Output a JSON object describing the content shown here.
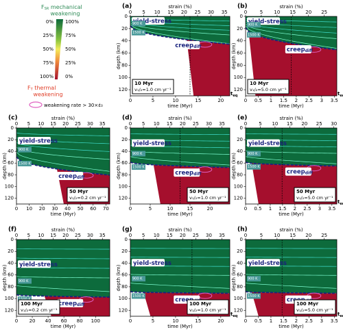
{
  "legend": {
    "top_symbol": "F",
    "top_sub": "SR",
    "top_word": "mechanical",
    "top_word2": "weakening",
    "left_ticks": [
      "0%",
      "25%",
      "50%",
      "75%",
      "100%"
    ],
    "right_ticks": [
      "100%",
      "75%",
      "50%",
      "25%",
      "0%"
    ],
    "bottom_symbol": "F",
    "bottom_sub": "T",
    "bottom_word": "thermal",
    "bottom_word2": "weakening",
    "rate_label": "weakening rate > 30×ε̇₀"
  },
  "chart_data": [
    {
      "type": "field",
      "title": "(a)",
      "xlabel": "time (Myr)",
      "x2label": "strain (%)",
      "ylabel": "depth (km)",
      "xlim": [
        0,
        22
      ],
      "xticks": [
        0,
        5,
        10,
        15,
        20
      ],
      "x2lim": [
        0,
        37
      ],
      "x2ticks": [
        0,
        5,
        10,
        15,
        20,
        25,
        30,
        35
      ],
      "ylim": [
        130,
        0
      ],
      "yticks": [
        0,
        20,
        40,
        60,
        80,
        100,
        120
      ],
      "upper_label": "yield-stress",
      "lower_label": "creep",
      "lower_sub": "diff",
      "isotherm_1": "900 K",
      "isotherm_2": "1500 K",
      "age": "10 Myr",
      "velocity": "v₁/₂=1.0 cm yr⁻¹",
      "teq": "t",
      "teq_sub": "eq"
    },
    {
      "type": "field",
      "title": "(b)",
      "xlabel": "time (Myr)",
      "x2label": "strain (%)",
      "ylabel": "depth (km)",
      "xlim": [
        0,
        3.6
      ],
      "xticks": [
        0,
        0.5,
        1,
        1.5,
        2,
        2.5,
        3,
        3.5
      ],
      "x2lim": [
        0,
        29
      ],
      "x2ticks": [
        0,
        5,
        10,
        15,
        20,
        25
      ],
      "ylim": [
        130,
        0
      ],
      "yticks": [
        0,
        20,
        40,
        60,
        80,
        100,
        120
      ],
      "upper_label": "yield-stress",
      "lower_label": "creep",
      "lower_sub": "diff",
      "isotherm_1": "900 K",
      "isotherm_2": "1500 K",
      "age": "10 Myr",
      "velocity": "v₁/₂=5.0 cm yr⁻¹",
      "teq": "t",
      "teq_sub": "eq"
    },
    {
      "type": "field",
      "title": "(c)",
      "xlabel": "time (Myr)",
      "x2label": "strain (%)",
      "ylabel": "depth (km)",
      "xlim": [
        0,
        73
      ],
      "xticks": [
        0,
        10,
        20,
        30,
        40,
        50,
        60,
        70
      ],
      "x2lim": [
        0,
        38
      ],
      "x2ticks": [
        0,
        5,
        10,
        15,
        20,
        25,
        30,
        35
      ],
      "ylim": [
        130,
        0
      ],
      "yticks": [
        0,
        20,
        40,
        60,
        80,
        100,
        120
      ],
      "upper_label": "yield-stress",
      "lower_label": "creep",
      "lower_sub": "diff",
      "isotherm_1": "900 K",
      "isotherm_2": "1500 K",
      "age": "50 Myr",
      "velocity": "v₁/₂=0.2 cm yr⁻¹"
    },
    {
      "type": "field",
      "title": "(d)",
      "xlabel": "time (Myr)",
      "x2label": "strain (%)",
      "ylabel": "depth (km)",
      "xlim": [
        0,
        25
      ],
      "xticks": [
        0,
        5,
        10,
        15,
        20
      ],
      "x2lim": [
        0,
        38
      ],
      "x2ticks": [
        0,
        5,
        10,
        15,
        20,
        25,
        30,
        35
      ],
      "ylim": [
        130,
        0
      ],
      "yticks": [
        0,
        20,
        40,
        60,
        80,
        100,
        120
      ],
      "upper_label": "yield-stress",
      "lower_label": "creep",
      "lower_sub": "diff",
      "isotherm_1": "900 K",
      "isotherm_2": "1500 K",
      "age": "50 Myr",
      "velocity": "v₁/₂=1.0 cm yr⁻¹"
    },
    {
      "type": "field",
      "title": "(e)",
      "xlabel": "time (Myr)",
      "x2label": "strain (%)",
      "ylabel": "depth (km)",
      "xlim": [
        0,
        3.7
      ],
      "xticks": [
        0,
        0.5,
        1,
        1.5,
        2,
        2.5,
        3,
        3.5
      ],
      "x2lim": [
        0,
        31
      ],
      "x2ticks": [
        0,
        5,
        10,
        15,
        20,
        25,
        30
      ],
      "ylim": [
        130,
        0
      ],
      "yticks": [
        0,
        20,
        40,
        60,
        80,
        100,
        120
      ],
      "upper_label": "yield-stress",
      "lower_label": "creep",
      "lower_sub": "diff",
      "isotherm_1": "900 K",
      "isotherm_2": "1500 K",
      "age": "50 Myr",
      "velocity": "v₁/₂=5.0 cm yr⁻¹",
      "teq": "t",
      "teq_sub": "eq"
    },
    {
      "type": "field",
      "title": "(f)",
      "xlabel": "time (Myr)",
      "x2label": "strain (%)",
      "ylabel": "depth (km)",
      "xlim": [
        0,
        118
      ],
      "xticks": [
        0,
        20,
        40,
        60,
        80,
        100
      ],
      "x2lim": [
        0,
        38
      ],
      "x2ticks": [
        0,
        5,
        10,
        15,
        20,
        25,
        30,
        35
      ],
      "ylim": [
        130,
        0
      ],
      "yticks": [
        0,
        20,
        40,
        60,
        80,
        100,
        120
      ],
      "upper_label": "yield-stress",
      "lower_label": "creep",
      "lower_sub": "diff",
      "isotherm_1": "900 K",
      "isotherm_2": "1500 K",
      "age": "100 Myr",
      "velocity": "v₁/₂=0.2 cm yr⁻¹"
    },
    {
      "type": "field",
      "title": "(g)",
      "xlabel": "time (Myr)",
      "x2label": "strain (%)",
      "ylabel": "depth (km)",
      "xlim": [
        0,
        22
      ],
      "xticks": [
        0,
        5,
        10,
        15,
        20
      ],
      "x2lim": [
        0,
        38
      ],
      "x2ticks": [
        0,
        5,
        10,
        15,
        20,
        25,
        30,
        35
      ],
      "ylim": [
        130,
        0
      ],
      "yticks": [
        0,
        20,
        40,
        60,
        80,
        100,
        120
      ],
      "upper_label": "yield-stress",
      "lower_label": "creep",
      "lower_sub": "diff",
      "isotherm_1": "900 K",
      "isotherm_2": "1500 K",
      "age": "100 Myr",
      "velocity": "v₁/₂=1.0 cm yr⁻¹",
      "teq": "t",
      "teq_sub": "eq"
    },
    {
      "type": "field",
      "title": "(h)",
      "xlabel": "time (Myr)",
      "x2label": "strain (%)",
      "ylabel": "depth (km)",
      "xlim": [
        0,
        3.6
      ],
      "xticks": [
        0,
        0.5,
        1,
        1.5,
        2,
        2.5,
        3,
        3.5
      ],
      "x2lim": [
        0,
        29
      ],
      "x2ticks": [
        0,
        5,
        10,
        15,
        20,
        25
      ],
      "ylim": [
        130,
        0
      ],
      "yticks": [
        0,
        20,
        40,
        60,
        80,
        100,
        120
      ],
      "upper_label": "yield-stress",
      "lower_label": "creep",
      "lower_sub": "diff",
      "isotherm_1": "900 K",
      "isotherm_2": "1500 K",
      "age": "100 Myr",
      "velocity": "v₁/₂=5.0 cm yr⁻¹",
      "teq": "t",
      "teq_sub": "eq"
    }
  ]
}
